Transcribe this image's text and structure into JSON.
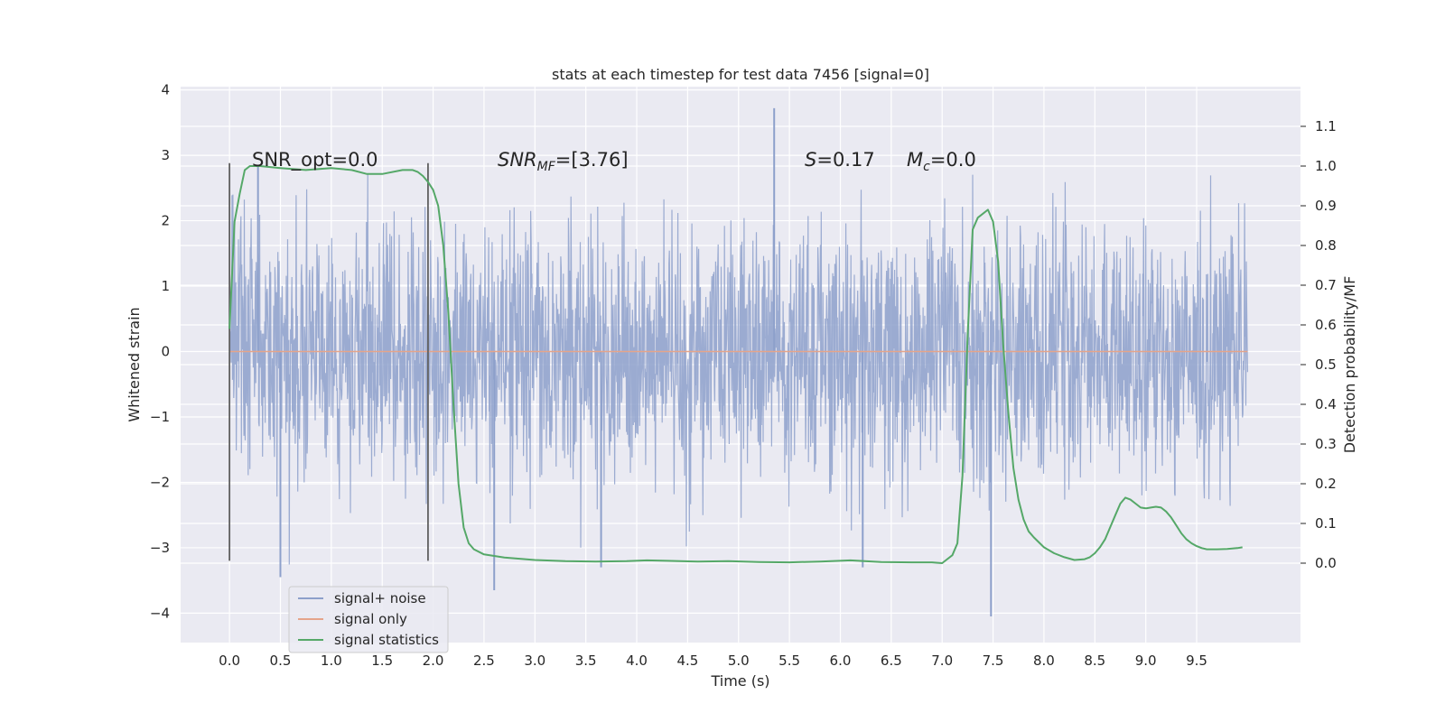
{
  "chart_data": {
    "type": "line",
    "title": "stats at each timestep for test data 7456 [signal=0]",
    "xlabel": "Time (s)",
    "ylabel": "Whitened strain",
    "y2label": "Detection probability/MF",
    "xlim": [
      -0.48,
      10.52
    ],
    "ylim": [
      -4.45,
      4.05
    ],
    "y2lim": [
      -0.2,
      1.2
    ],
    "xticks": [
      0.0,
      0.5,
      1.0,
      1.5,
      2.0,
      2.5,
      3.0,
      3.5,
      4.0,
      4.5,
      5.0,
      5.5,
      6.0,
      6.5,
      7.0,
      7.5,
      8.0,
      8.5,
      9.0,
      9.5
    ],
    "xtick_labels": [
      "0.0",
      "0.5",
      "1.0",
      "1.5",
      "2.0",
      "2.5",
      "3.0",
      "3.5",
      "4.0",
      "4.5",
      "5.0",
      "5.5",
      "6.0",
      "6.5",
      "7.0",
      "7.5",
      "8.0",
      "8.5",
      "9.0",
      "9.5"
    ],
    "yticks": [
      -4,
      -3,
      -2,
      -1,
      0,
      1,
      2,
      3,
      4
    ],
    "ytick_labels": [
      "−4",
      "−3",
      "−2",
      "−1",
      "0",
      "1",
      "2",
      "3",
      "4"
    ],
    "y2ticks": [
      0.0,
      0.1,
      0.2,
      0.3,
      0.4,
      0.5,
      0.6,
      0.7,
      0.8,
      0.9,
      1.0,
      1.1
    ],
    "y2tick_labels": [
      "0.0",
      "0.1",
      "0.2",
      "0.3",
      "0.4",
      "0.5",
      "0.6",
      "0.7",
      "0.8",
      "0.9",
      "1.0",
      "1.1"
    ],
    "grid": true,
    "legend_position": "lower-left",
    "series": [
      {
        "name": "signal+ noise",
        "color": "#8da0cb",
        "axis": "left",
        "x_range": [
          0.0,
          10.0
        ],
        "approx_range": [
          -3.7,
          3.7
        ],
        "peaks": [
          {
            "x": 5.35,
            "y": 3.72
          },
          {
            "x": 7.48,
            "y": -4.05
          },
          {
            "x": 2.6,
            "y": -3.65
          },
          {
            "x": 0.5,
            "y": -3.45
          },
          {
            "x": 6.22,
            "y": -3.3
          },
          {
            "x": 3.65,
            "y": -3.3
          },
          {
            "x": 0.28,
            "y": 2.85
          }
        ]
      },
      {
        "name": "signal only",
        "color": "#e5a48a",
        "axis": "left",
        "x": [
          0.0,
          10.0
        ],
        "y": [
          0.0,
          0.0
        ]
      },
      {
        "name": "signal statistics",
        "color": "#55a868",
        "axis": "right",
        "x": [
          0.0,
          0.05,
          0.1,
          0.15,
          0.2,
          0.3,
          0.5,
          0.75,
          1.0,
          1.2,
          1.35,
          1.5,
          1.7,
          1.8,
          1.85,
          1.9,
          1.95,
          2.0,
          2.05,
          2.1,
          2.15,
          2.2,
          2.25,
          2.3,
          2.35,
          2.4,
          2.5,
          2.7,
          3.0,
          3.3,
          3.6,
          3.9,
          4.1,
          4.3,
          4.6,
          4.9,
          5.2,
          5.5,
          5.8,
          6.1,
          6.4,
          6.7,
          6.9,
          7.0,
          7.05,
          7.1,
          7.15,
          7.2,
          7.25,
          7.3,
          7.35,
          7.4,
          7.45,
          7.5,
          7.55,
          7.6,
          7.65,
          7.7,
          7.75,
          7.8,
          7.85,
          7.9,
          8.0,
          8.1,
          8.2,
          8.3,
          8.4,
          8.45,
          8.5,
          8.55,
          8.6,
          8.65,
          8.7,
          8.75,
          8.8,
          8.85,
          8.9,
          8.95,
          9.0,
          9.05,
          9.1,
          9.15,
          9.2,
          9.25,
          9.3,
          9.35,
          9.4,
          9.45,
          9.5,
          9.55,
          9.6,
          9.7,
          9.8,
          9.9,
          9.95
        ],
        "y": [
          0.59,
          0.86,
          0.93,
          0.99,
          1.0,
          1.0,
          0.995,
          0.99,
          0.995,
          0.99,
          0.98,
          0.98,
          0.99,
          0.99,
          0.985,
          0.975,
          0.96,
          0.94,
          0.9,
          0.8,
          0.63,
          0.4,
          0.2,
          0.09,
          0.05,
          0.035,
          0.022,
          0.014,
          0.008,
          0.005,
          0.004,
          0.005,
          0.007,
          0.006,
          0.004,
          0.005,
          0.003,
          0.002,
          0.004,
          0.007,
          0.003,
          0.002,
          0.002,
          0.0,
          0.01,
          0.02,
          0.05,
          0.22,
          0.57,
          0.84,
          0.87,
          0.88,
          0.89,
          0.86,
          0.76,
          0.55,
          0.38,
          0.24,
          0.16,
          0.11,
          0.08,
          0.065,
          0.04,
          0.025,
          0.015,
          0.008,
          0.01,
          0.015,
          0.025,
          0.04,
          0.06,
          0.09,
          0.12,
          0.15,
          0.165,
          0.16,
          0.15,
          0.14,
          0.138,
          0.14,
          0.142,
          0.14,
          0.13,
          0.115,
          0.095,
          0.075,
          0.06,
          0.05,
          0.043,
          0.038,
          0.035,
          0.035,
          0.036,
          0.038,
          0.04
        ]
      }
    ],
    "vertical_markers": [
      {
        "x": 0.0,
        "y_from": -3.2,
        "y_to": 2.88,
        "color": "#606060"
      },
      {
        "x": 1.95,
        "y_from": -3.2,
        "y_to": 2.88,
        "color": "#606060"
      }
    ],
    "annotations": {
      "snr_opt": "SNR_opt=0.0",
      "snr_mf_main": "SNR",
      "snr_mf_sub": "MF",
      "snr_mf_rest": "=[3.76]",
      "s_main": "S",
      "s_rest": "=0.17",
      "mc_main": "M",
      "mc_sub": "c",
      "mc_rest": "=0.0"
    }
  }
}
